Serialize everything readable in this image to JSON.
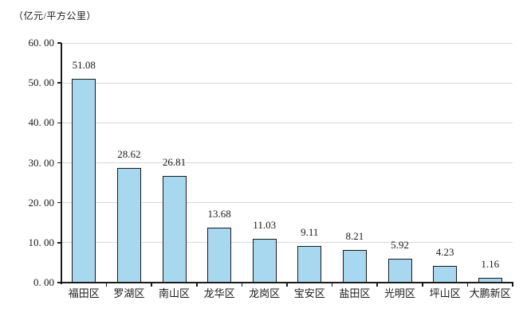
{
  "unit_label": "（亿元/平方公里）",
  "colors": {
    "background": "#ffffff",
    "bar_fill": "#a8d8f0",
    "bar_border": "#1a1a1a",
    "gridline": "#d9d9d9",
    "axis": "#1a1a1a",
    "text": "#1a1a1a"
  },
  "chart_data": {
    "type": "bar",
    "title": "",
    "unit": "（亿元/平方公里）",
    "categories": [
      "福田区",
      "罗湖区",
      "南山区",
      "龙华区",
      "龙岗区",
      "宝安区",
      "盐田区",
      "光明区",
      "坪山区",
      "大鹏新区"
    ],
    "values": [
      51.08,
      28.62,
      26.81,
      13.68,
      11.03,
      9.11,
      8.21,
      5.92,
      4.23,
      1.16
    ],
    "value_labels": [
      "51.08",
      "28.62",
      "26.81",
      "13.68",
      "11.03",
      "9.11",
      "8.21",
      "5.92",
      "4.23",
      "1.16"
    ],
    "xlabel": "",
    "ylabel": "",
    "ylim": [
      0,
      60
    ],
    "y_tick_interval": 10,
    "y_tick_labels": [
      "0. 00",
      "10. 00",
      "20. 00",
      "30. 00",
      "40. 00",
      "50. 00",
      "60. 00"
    ],
    "grid": true,
    "legend_position": "none"
  }
}
